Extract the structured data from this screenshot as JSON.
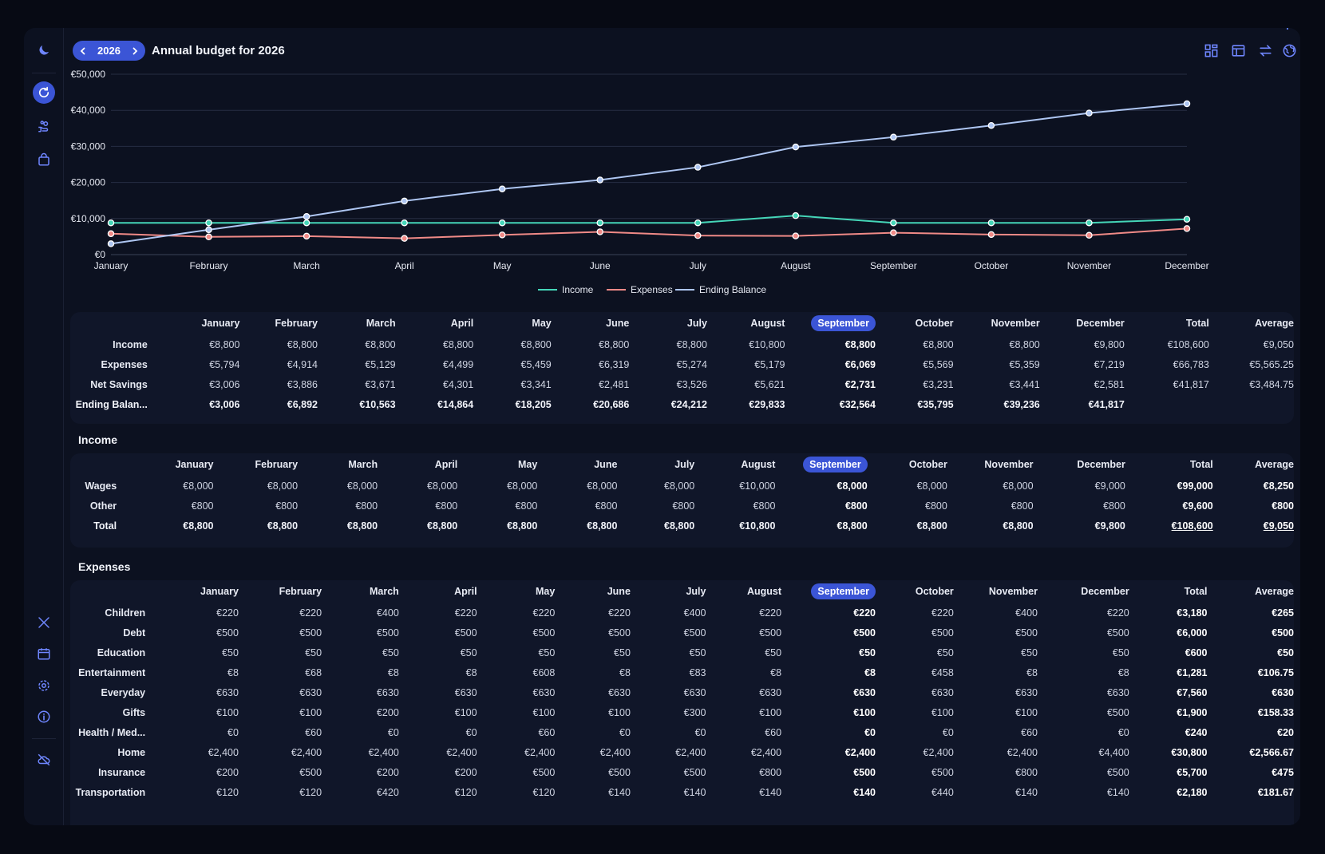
{
  "header": {
    "year": "2026",
    "title": "Annual budget for 2026",
    "prev_label": "‹",
    "next_label": "›"
  },
  "colors": {
    "accent": "#3b55d6",
    "income": "#45d6b8",
    "expenses": "#f08a87",
    "ending_balance": "#aec6f2"
  },
  "icons": {
    "sidebar_top": "moon-icon",
    "sidebar": [
      "refresh-icon",
      "hand-coins-icon",
      "shopping-bag-icon"
    ],
    "sidebar_bottom": [
      "tools-icon",
      "calendar-icon",
      "settings-icon",
      "info-icon",
      "cloud-off-icon"
    ],
    "toolbar": [
      "grid-icon",
      "table-icon",
      "swap-icon",
      "globe-icon"
    ]
  },
  "chart_data": {
    "type": "line",
    "categories": [
      "January",
      "February",
      "March",
      "April",
      "May",
      "June",
      "July",
      "August",
      "September",
      "October",
      "November",
      "December"
    ],
    "y_ticks": [
      "€0",
      "€10,000",
      "€20,000",
      "€30,000",
      "€40,000",
      "€50,000"
    ],
    "ylim": [
      0,
      50000
    ],
    "grid": true,
    "legend_position": "bottom",
    "series": [
      {
        "name": "Income",
        "values": [
          8800,
          8800,
          8800,
          8800,
          8800,
          8800,
          8800,
          10800,
          8800,
          8800,
          8800,
          9800
        ]
      },
      {
        "name": "Expenses",
        "values": [
          5794,
          4914,
          5129,
          4499,
          5459,
          6319,
          5274,
          5179,
          6069,
          5569,
          5359,
          7219
        ]
      },
      {
        "name": "Ending Balance",
        "values": [
          3006,
          6892,
          10563,
          14864,
          18205,
          20686,
          24212,
          29833,
          32564,
          35795,
          39236,
          41817
        ]
      }
    ]
  },
  "highlight_month": "September",
  "summary": {
    "columns": [
      "January",
      "February",
      "March",
      "April",
      "May",
      "June",
      "July",
      "August",
      "September",
      "October",
      "November",
      "December",
      "Total",
      "Average"
    ],
    "rows": [
      {
        "label": "Income",
        "values": [
          "€8,800",
          "€8,800",
          "€8,800",
          "€8,800",
          "€8,800",
          "€8,800",
          "€8,800",
          "€10,800",
          "€8,800",
          "€8,800",
          "€8,800",
          "€9,800",
          "€108,600",
          "€9,050"
        ]
      },
      {
        "label": "Expenses",
        "values": [
          "€5,794",
          "€4,914",
          "€5,129",
          "€4,499",
          "€5,459",
          "€6,319",
          "€5,274",
          "€5,179",
          "€6,069",
          "€5,569",
          "€5,359",
          "€7,219",
          "€66,783",
          "€5,565.25"
        ]
      },
      {
        "label": "Net Savings",
        "values": [
          "€3,006",
          "€3,886",
          "€3,671",
          "€4,301",
          "€3,341",
          "€2,481",
          "€3,526",
          "€5,621",
          "€2,731",
          "€3,231",
          "€3,441",
          "€2,581",
          "€41,817",
          "€3,484.75"
        ]
      },
      {
        "label": "Ending Balan...",
        "values": [
          "€3,006",
          "€6,892",
          "€10,563",
          "€14,864",
          "€18,205",
          "€20,686",
          "€24,212",
          "€29,833",
          "€32,564",
          "€35,795",
          "€39,236",
          "€41,817",
          "",
          ""
        ]
      }
    ]
  },
  "income_section": {
    "title": "Income",
    "columns": [
      "January",
      "February",
      "March",
      "April",
      "May",
      "June",
      "July",
      "August",
      "September",
      "October",
      "November",
      "December",
      "Total",
      "Average"
    ],
    "rows": [
      {
        "label": "Wages",
        "values": [
          "€8,000",
          "€8,000",
          "€8,000",
          "€8,000",
          "€8,000",
          "€8,000",
          "€8,000",
          "€10,000",
          "€8,000",
          "€8,000",
          "€8,000",
          "€9,000",
          "€99,000",
          "€8,250"
        ]
      },
      {
        "label": "Other",
        "values": [
          "€800",
          "€800",
          "€800",
          "€800",
          "€800",
          "€800",
          "€800",
          "€800",
          "€800",
          "€800",
          "€800",
          "€800",
          "€9,600",
          "€800"
        ]
      },
      {
        "label": "Total",
        "values": [
          "€8,800",
          "€8,800",
          "€8,800",
          "€8,800",
          "€8,800",
          "€8,800",
          "€8,800",
          "€10,800",
          "€8,800",
          "€8,800",
          "€8,800",
          "€9,800",
          "€108,600",
          "€9,050"
        ]
      }
    ]
  },
  "expenses_section": {
    "title": "Expenses",
    "columns": [
      "January",
      "February",
      "March",
      "April",
      "May",
      "June",
      "July",
      "August",
      "September",
      "October",
      "November",
      "December",
      "Total",
      "Average"
    ],
    "rows": [
      {
        "label": "Children",
        "values": [
          "€220",
          "€220",
          "€400",
          "€220",
          "€220",
          "€220",
          "€400",
          "€220",
          "€220",
          "€220",
          "€400",
          "€220",
          "€3,180",
          "€265"
        ]
      },
      {
        "label": "Debt",
        "values": [
          "€500",
          "€500",
          "€500",
          "€500",
          "€500",
          "€500",
          "€500",
          "€500",
          "€500",
          "€500",
          "€500",
          "€500",
          "€6,000",
          "€500"
        ]
      },
      {
        "label": "Education",
        "values": [
          "€50",
          "€50",
          "€50",
          "€50",
          "€50",
          "€50",
          "€50",
          "€50",
          "€50",
          "€50",
          "€50",
          "€50",
          "€600",
          "€50"
        ]
      },
      {
        "label": "Entertainment",
        "values": [
          "€8",
          "€68",
          "€8",
          "€8",
          "€608",
          "€8",
          "€83",
          "€8",
          "€8",
          "€458",
          "€8",
          "€8",
          "€1,281",
          "€106.75"
        ]
      },
      {
        "label": "Everyday",
        "values": [
          "€630",
          "€630",
          "€630",
          "€630",
          "€630",
          "€630",
          "€630",
          "€630",
          "€630",
          "€630",
          "€630",
          "€630",
          "€7,560",
          "€630"
        ]
      },
      {
        "label": "Gifts",
        "values": [
          "€100",
          "€100",
          "€200",
          "€100",
          "€100",
          "€100",
          "€300",
          "€100",
          "€100",
          "€100",
          "€100",
          "€500",
          "€1,900",
          "€158.33"
        ]
      },
      {
        "label": "Health / Med...",
        "values": [
          "€0",
          "€60",
          "€0",
          "€0",
          "€60",
          "€0",
          "€0",
          "€60",
          "€0",
          "€0",
          "€60",
          "€0",
          "€240",
          "€20"
        ]
      },
      {
        "label": "Home",
        "values": [
          "€2,400",
          "€2,400",
          "€2,400",
          "€2,400",
          "€2,400",
          "€2,400",
          "€2,400",
          "€2,400",
          "€2,400",
          "€2,400",
          "€2,400",
          "€4,400",
          "€30,800",
          "€2,566.67"
        ]
      },
      {
        "label": "Insurance",
        "values": [
          "€200",
          "€500",
          "€200",
          "€200",
          "€500",
          "€500",
          "€500",
          "€800",
          "€500",
          "€500",
          "€800",
          "€500",
          "€5,700",
          "€475"
        ]
      },
      {
        "label": "Transportation",
        "values": [
          "€120",
          "€120",
          "€420",
          "€120",
          "€120",
          "€140",
          "€140",
          "€140",
          "€140",
          "€440",
          "€140",
          "€140",
          "€2,180",
          "€181.67"
        ]
      }
    ]
  }
}
